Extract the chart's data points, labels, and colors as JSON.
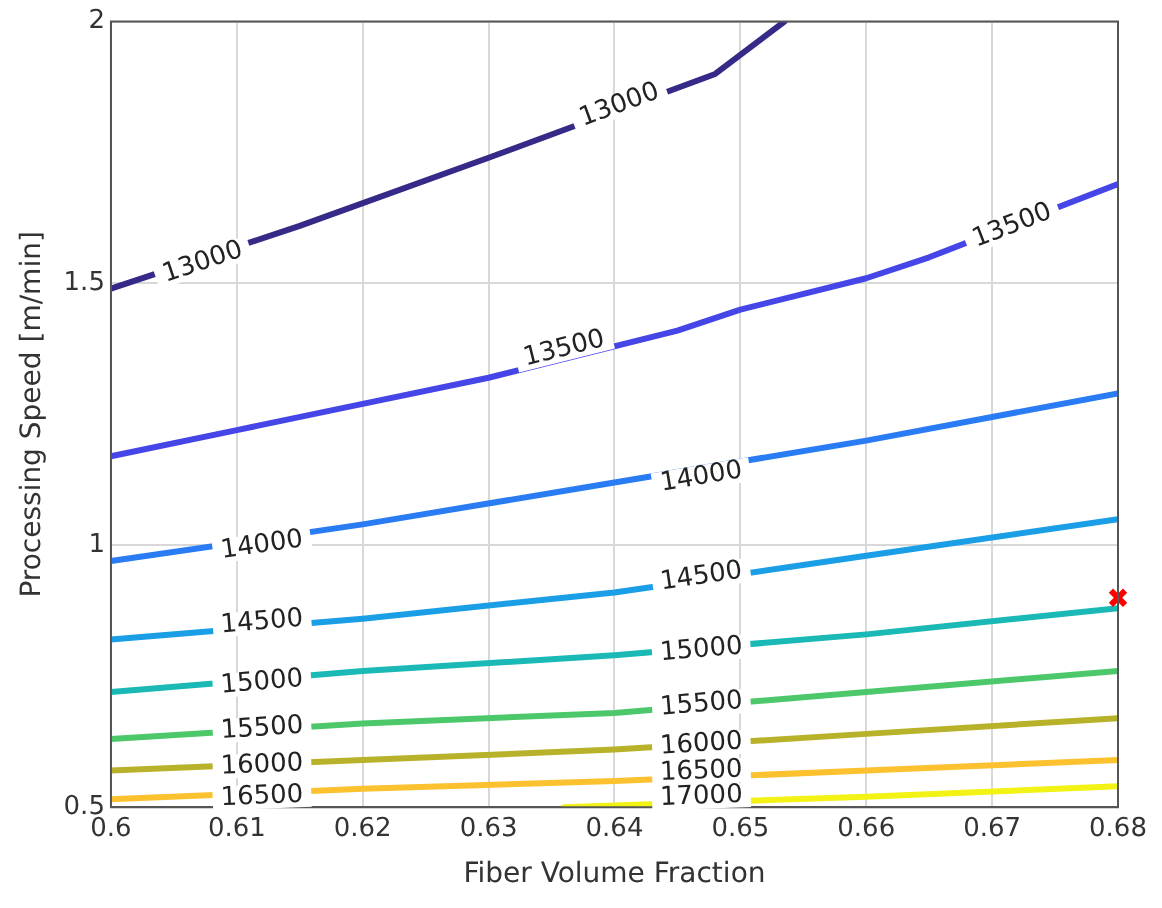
{
  "chart_data": {
    "type": "line",
    "xlabel": "Fiber Volume Fraction",
    "ylabel": "Processing Speed [m/min]",
    "xlim": [
      0.6,
      0.68
    ],
    "xticks": [
      0.6,
      0.61,
      0.62,
      0.63,
      0.64,
      0.65,
      0.66,
      0.67,
      0.68
    ],
    "ylim": [
      0.5,
      2
    ],
    "yticks": [
      0.5,
      1,
      1.5,
      2
    ],
    "grid": true,
    "legend": false,
    "line_style": "solid",
    "series": [
      {
        "color": "#352a87",
        "x": [
          0.6,
          0.615,
          0.63,
          0.648,
          0.6535
        ],
        "values": [
          1.49,
          1.61,
          1.74,
          1.9,
          2.0
        ]
      },
      {
        "color": "#4545e8",
        "x": [
          0.6,
          0.61,
          0.62,
          0.63,
          0.645,
          0.65,
          0.66,
          0.665,
          0.68
        ],
        "values": [
          1.17,
          1.22,
          1.27,
          1.32,
          1.41,
          1.45,
          1.51,
          1.55,
          1.69
        ]
      },
      {
        "color": "#2a7cf5",
        "x": [
          0.6,
          0.62,
          0.64,
          0.66,
          0.68
        ],
        "values": [
          0.97,
          1.04,
          1.12,
          1.2,
          1.29
        ]
      },
      {
        "color": "#1a9ee6",
        "x": [
          0.6,
          0.62,
          0.64,
          0.66,
          0.68
        ],
        "values": [
          0.82,
          0.86,
          0.91,
          0.98,
          1.05
        ]
      },
      {
        "color": "#1ab9b5",
        "x": [
          0.6,
          0.62,
          0.64,
          0.66,
          0.68
        ],
        "values": [
          0.72,
          0.76,
          0.79,
          0.83,
          0.88
        ]
      },
      {
        "color": "#4cc86a",
        "x": [
          0.6,
          0.62,
          0.64,
          0.66,
          0.68
        ],
        "values": [
          0.63,
          0.66,
          0.68,
          0.72,
          0.76
        ]
      },
      {
        "color": "#b8b22a",
        "x": [
          0.6,
          0.62,
          0.64,
          0.66,
          0.68
        ],
        "values": [
          0.57,
          0.59,
          0.61,
          0.64,
          0.67
        ]
      },
      {
        "color": "#fcc12e",
        "x": [
          0.6,
          0.62,
          0.64,
          0.66,
          0.68
        ],
        "values": [
          0.515,
          0.535,
          0.55,
          0.57,
          0.59
        ]
      },
      {
        "color": "#f2f214",
        "x": [
          0.636,
          0.66,
          0.68
        ],
        "values": [
          0.5,
          0.52,
          0.54
        ]
      },
      {
        "type": "scatter",
        "marker": "cross",
        "color": "#ff0000",
        "x": [
          0.68
        ],
        "values": [
          0.9
        ]
      }
    ],
    "annotations": [
      {
        "text": "13000",
        "x": 0.6073,
        "y": 1.54
      },
      {
        "text": "13000",
        "x": 0.6404,
        "y": 1.84
      },
      {
        "text": "13500",
        "x": 0.636,
        "y": 1.375
      },
      {
        "text": "13500",
        "x": 0.6716,
        "y": 1.61
      },
      {
        "text": "14000",
        "x": 0.612,
        "y": 1.0
      },
      {
        "text": "14000",
        "x": 0.6469,
        "y": 1.13
      },
      {
        "text": "14500",
        "x": 0.612,
        "y": 0.853
      },
      {
        "text": "14500",
        "x": 0.6469,
        "y": 0.94
      },
      {
        "text": "15000",
        "x": 0.612,
        "y": 0.738
      },
      {
        "text": "15000",
        "x": 0.6469,
        "y": 0.8
      },
      {
        "text": "15500",
        "x": 0.612,
        "y": 0.65
      },
      {
        "text": "15500",
        "x": 0.6469,
        "y": 0.696
      },
      {
        "text": "16000",
        "x": 0.612,
        "y": 0.58
      },
      {
        "text": "16000",
        "x": 0.6469,
        "y": 0.62
      },
      {
        "text": "16500",
        "x": 0.612,
        "y": 0.52
      },
      {
        "text": "16500",
        "x": 0.6469,
        "y": 0.568
      },
      {
        "text": "17000",
        "x": 0.6469,
        "y": 0.52
      }
    ]
  }
}
